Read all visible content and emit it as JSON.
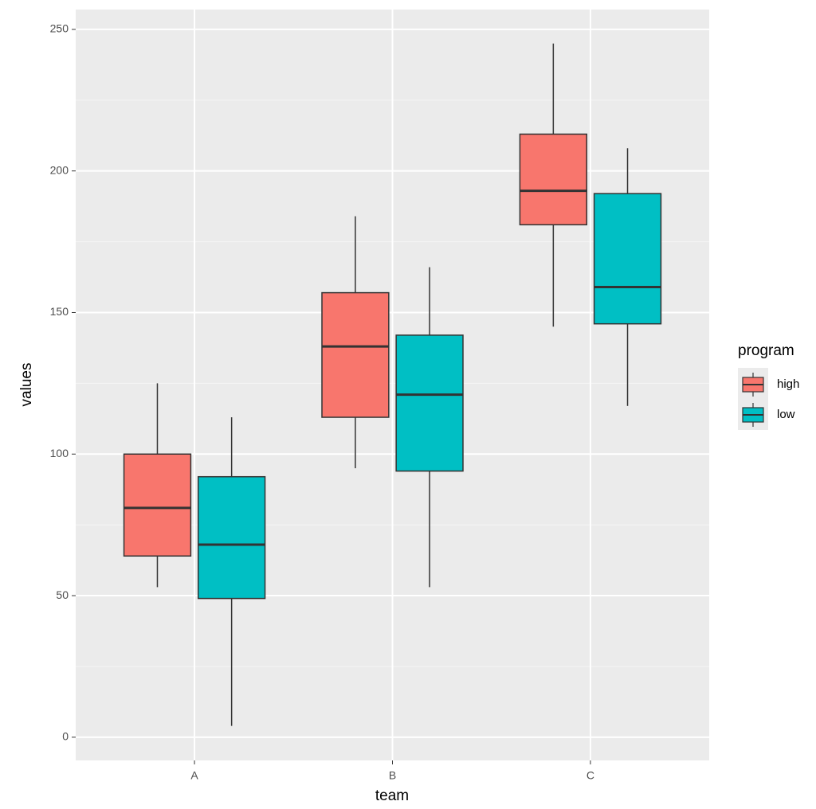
{
  "chart_data": {
    "type": "boxplot",
    "x_label": "team",
    "y_label": "values",
    "categories": [
      "A",
      "B",
      "C"
    ],
    "legend_title": "program",
    "series": [
      {
        "name": "high",
        "color": "#f8766d",
        "boxes": [
          {
            "min": 53,
            "q1": 64,
            "median": 81,
            "q3": 100,
            "max": 125
          },
          {
            "min": 95,
            "q1": 113,
            "median": 138,
            "q3": 157,
            "max": 184
          },
          {
            "min": 145,
            "q1": 181,
            "median": 193,
            "q3": 213,
            "max": 245
          }
        ]
      },
      {
        "name": "low",
        "color": "#00bfc4",
        "boxes": [
          {
            "min": 4,
            "q1": 49,
            "median": 68,
            "q3": 92,
            "max": 113
          },
          {
            "min": 53,
            "q1": 94,
            "median": 121,
            "q3": 142,
            "max": 166
          },
          {
            "min": 117,
            "q1": 146,
            "median": 159,
            "q3": 192,
            "max": 208
          }
        ]
      }
    ],
    "ylim": [
      -8.2,
      257
    ],
    "yticks": [
      0,
      50,
      100,
      150,
      200,
      250
    ],
    "yminor": [
      25,
      75,
      125,
      175,
      225
    ],
    "grid": true,
    "legend_position": "right"
  }
}
